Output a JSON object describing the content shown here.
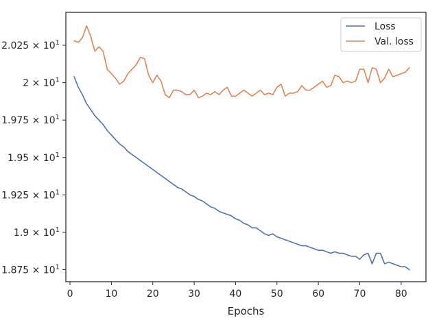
{
  "chart_data": {
    "type": "line",
    "title": "",
    "xlabel": "Epochs",
    "ylabel": "",
    "xlim": [
      -1,
      86
    ],
    "ylim": [
      18.67,
      20.47
    ],
    "grid": false,
    "legend_position": "top-right",
    "x_ticks": [
      0,
      10,
      20,
      30,
      40,
      50,
      60,
      70,
      80
    ],
    "y_ticks": [
      {
        "value": 18.75,
        "mantissa": "1.875",
        "base": "10",
        "exp": "1"
      },
      {
        "value": 19.0,
        "mantissa": "1.9",
        "base": "10",
        "exp": "1"
      },
      {
        "value": 19.25,
        "mantissa": "1.925",
        "base": "10",
        "exp": "1"
      },
      {
        "value": 19.5,
        "mantissa": "1.95",
        "base": "10",
        "exp": "1"
      },
      {
        "value": 19.75,
        "mantissa": "1.975",
        "base": "10",
        "exp": "1"
      },
      {
        "value": 20.0,
        "mantissa": "2",
        "base": "10",
        "exp": "1"
      },
      {
        "value": 20.25,
        "mantissa": "2.025",
        "base": "10",
        "exp": "1"
      }
    ],
    "x": [
      1,
      2,
      3,
      4,
      5,
      6,
      7,
      8,
      9,
      10,
      11,
      12,
      13,
      14,
      15,
      16,
      17,
      18,
      19,
      20,
      21,
      22,
      23,
      24,
      25,
      26,
      27,
      28,
      29,
      30,
      31,
      32,
      33,
      34,
      35,
      36,
      37,
      38,
      39,
      40,
      41,
      42,
      43,
      44,
      45,
      46,
      47,
      48,
      49,
      50,
      51,
      52,
      53,
      54,
      55,
      56,
      57,
      58,
      59,
      60,
      61,
      62,
      63,
      64,
      65,
      66,
      67,
      68,
      69,
      70,
      71,
      72,
      73,
      74,
      75,
      76,
      77,
      78,
      79,
      80,
      81,
      82
    ],
    "series": [
      {
        "name": "Loss",
        "color": "#4c72b0",
        "values": [
          20.04,
          19.97,
          19.92,
          19.86,
          19.82,
          19.78,
          19.75,
          19.72,
          19.68,
          19.65,
          19.62,
          19.59,
          19.57,
          19.54,
          19.52,
          19.5,
          19.48,
          19.46,
          19.44,
          19.42,
          19.4,
          19.38,
          19.36,
          19.34,
          19.32,
          19.3,
          19.29,
          19.27,
          19.25,
          19.24,
          19.22,
          19.21,
          19.19,
          19.17,
          19.16,
          19.14,
          19.13,
          19.12,
          19.11,
          19.09,
          19.08,
          19.06,
          19.05,
          19.03,
          19.03,
          19.01,
          18.99,
          18.98,
          18.99,
          18.97,
          18.96,
          18.95,
          18.94,
          18.93,
          18.92,
          18.91,
          18.91,
          18.9,
          18.89,
          18.88,
          18.88,
          18.87,
          18.86,
          18.87,
          18.86,
          18.86,
          18.85,
          18.84,
          18.84,
          18.82,
          18.85,
          18.86,
          18.79,
          18.86,
          18.86,
          18.79,
          18.8,
          18.79,
          18.78,
          18.77,
          18.77,
          18.75
        ]
      },
      {
        "name": "Val. loss",
        "color": "#dd8452",
        "values": [
          20.28,
          20.27,
          20.3,
          20.38,
          20.31,
          20.21,
          20.24,
          20.21,
          20.09,
          20.06,
          20.03,
          19.99,
          20.01,
          20.06,
          20.09,
          20.12,
          20.17,
          20.16,
          20.05,
          20.0,
          20.05,
          20.01,
          19.92,
          19.9,
          19.95,
          19.95,
          19.94,
          19.92,
          19.92,
          19.95,
          19.9,
          19.91,
          19.93,
          19.92,
          19.94,
          19.92,
          19.95,
          19.97,
          19.91,
          19.91,
          19.93,
          19.95,
          19.93,
          19.91,
          19.93,
          19.95,
          19.92,
          19.93,
          19.92,
          19.97,
          19.99,
          19.91,
          19.93,
          19.93,
          19.94,
          19.98,
          19.95,
          19.95,
          19.97,
          19.99,
          20.01,
          19.97,
          19.98,
          20.05,
          20.04,
          20.0,
          20.01,
          20.0,
          20.01,
          20.09,
          20.09,
          20.0,
          20.1,
          20.09,
          20.0,
          20.03,
          20.09,
          20.04,
          20.05,
          20.06,
          20.07,
          20.1
        ]
      }
    ]
  }
}
